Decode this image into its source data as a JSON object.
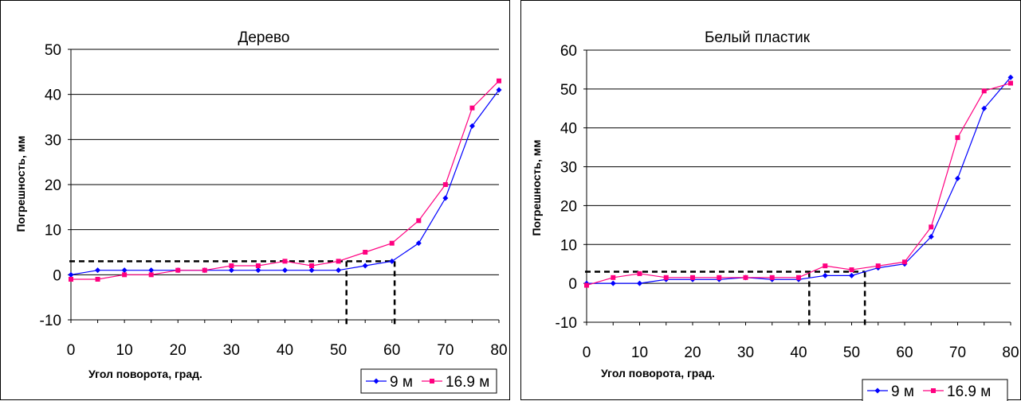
{
  "chart_data": [
    {
      "type": "line",
      "title": "Дерево",
      "xlabel": "Угол поворота, град.",
      "ylabel": "Погрешность, мм",
      "xlim": [
        0,
        80
      ],
      "ylim": [
        -10,
        50
      ],
      "x_ticks": [
        0,
        10,
        20,
        30,
        40,
        50,
        60,
        70,
        80
      ],
      "y_ticks": [
        -10,
        0,
        10,
        20,
        30,
        40,
        50
      ],
      "grid": "horizontal",
      "legend": "bottom-right",
      "x": [
        0,
        5,
        10,
        15,
        20,
        25,
        30,
        35,
        40,
        45,
        50,
        55,
        60,
        65,
        70,
        75,
        80
      ],
      "series": [
        {
          "name": "9 м",
          "color": "#0000ff",
          "marker": "diamond",
          "values": [
            0,
            1,
            1,
            1,
            1,
            1,
            1,
            1,
            1,
            1,
            1,
            2,
            3,
            7,
            17,
            33,
            41
          ]
        },
        {
          "name": "16.9 м",
          "color": "#ff0080",
          "marker": "square",
          "values": [
            -1,
            -1,
            0,
            0,
            1,
            1,
            2,
            2,
            3,
            2,
            3,
            5,
            7,
            12,
            20,
            37,
            43
          ]
        }
      ],
      "threshold_lines": {
        "y": 3,
        "x": [
          51.5,
          60.5
        ]
      }
    },
    {
      "type": "line",
      "title": "Белый пластик",
      "xlabel": "Угол поворота, град.",
      "ylabel": "Погрешность, мм",
      "xlim": [
        0,
        80
      ],
      "ylim": [
        -10,
        60
      ],
      "x_ticks": [
        0,
        10,
        20,
        30,
        40,
        50,
        60,
        70,
        80
      ],
      "y_ticks": [
        -10,
        0,
        10,
        20,
        30,
        40,
        50,
        60
      ],
      "grid": "horizontal",
      "legend": "bottom-right",
      "x": [
        0,
        5,
        10,
        15,
        20,
        25,
        30,
        35,
        40,
        45,
        50,
        55,
        60,
        65,
        70,
        75,
        80
      ],
      "series": [
        {
          "name": "9 м",
          "color": "#0000ff",
          "marker": "diamond",
          "values": [
            0,
            0,
            0,
            1,
            1,
            1,
            1.5,
            1,
            1,
            2,
            2,
            4,
            5,
            12,
            27,
            45,
            53
          ]
        },
        {
          "name": "16.9 м",
          "color": "#ff0080",
          "marker": "square",
          "values": [
            -0.5,
            1.5,
            2.5,
            1.5,
            1.5,
            1.5,
            1.5,
            1.5,
            1.5,
            4.5,
            3.5,
            4.5,
            5.5,
            14.5,
            37.5,
            49.5,
            51.5
          ]
        }
      ],
      "threshold_lines": {
        "y": 3,
        "x": [
          42,
          52.5
        ]
      }
    }
  ]
}
